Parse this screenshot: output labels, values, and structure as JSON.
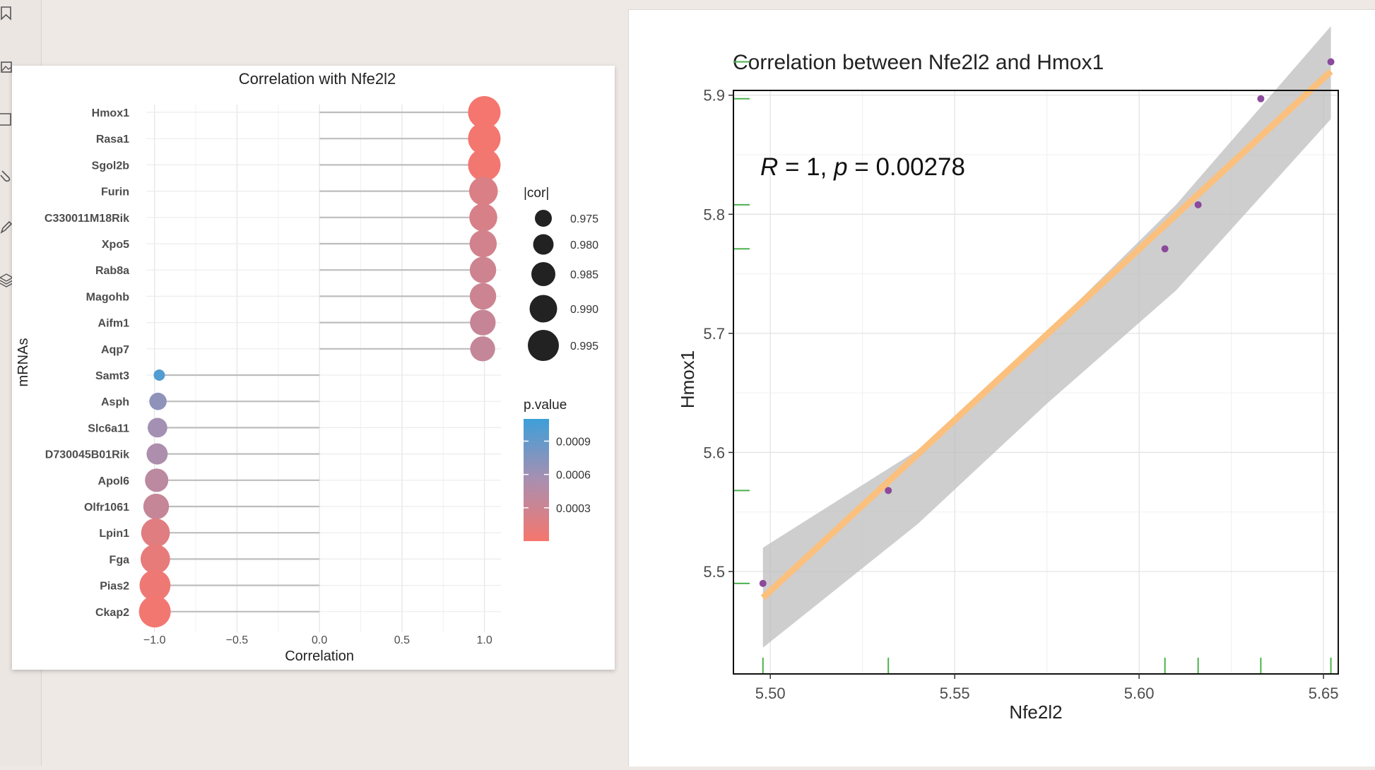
{
  "colors": {
    "p_high": "#3d9fd9",
    "p_mid": "#a98fb0",
    "p_low": "#f6766d",
    "lollipop_stem": "#bdbdbd",
    "smooth_line": "#fbc07d",
    "ci_band": "#bdbdbd",
    "point": "#8b4a9b",
    "rug": "#4bb14b"
  },
  "toolbar": {
    "icons": [
      "bookmark-icon",
      "image-icon",
      "page-icon",
      "paperclip-icon",
      "pen-icon",
      "layers-icon"
    ]
  },
  "chart_data": [
    {
      "type": "lollipop",
      "title": "Correlation with Nfe2l2",
      "xlabel": "Correlation",
      "ylabel": "mRNAs",
      "xlim": [
        -1.05,
        1.1
      ],
      "xticks": [
        -1.0,
        -0.5,
        0.0,
        0.5,
        1.0
      ],
      "xtick_labels": [
        "−1.0",
        "−0.5",
        "0.0",
        "0.5",
        "1.0"
      ],
      "grid": true,
      "legend_position": "right",
      "size_legend": {
        "title": "|cor|",
        "labels": [
          "0.975",
          "0.980",
          "0.985",
          "0.990",
          "0.995"
        ],
        "values": [
          0.975,
          0.98,
          0.985,
          0.99,
          0.995
        ]
      },
      "color_legend": {
        "title": "p.value",
        "labels": [
          "0.0009",
          "0.0006",
          "0.0003"
        ],
        "values": [
          0.0009,
          0.0006,
          0.0003
        ],
        "range": [
          0.0,
          0.0011
        ]
      },
      "categories": [
        "Hmox1",
        "Rasa1",
        "Sgol2b",
        "Furin",
        "C330011M18Rik",
        "Xpo5",
        "Rab8a",
        "Magohb",
        "Aifm1",
        "Aqp7",
        "Samt3",
        "Asph",
        "Slc6a11",
        "D730045B01Rik",
        "Apol6",
        "Olfr1061",
        "Lpin1",
        "Fga",
        "Pias2",
        "Ckap2"
      ],
      "cor": [
        0.999,
        0.999,
        0.999,
        0.994,
        0.993,
        0.992,
        0.991,
        0.991,
        0.99,
        0.989,
        -0.971,
        -0.979,
        -0.982,
        -0.984,
        -0.987,
        -0.99,
        -0.994,
        -0.995,
        -0.997,
        -0.998
      ],
      "abs_cor": [
        0.999,
        0.999,
        0.999,
        0.994,
        0.993,
        0.992,
        0.991,
        0.991,
        0.99,
        0.989,
        0.971,
        0.979,
        0.982,
        0.984,
        0.987,
        0.99,
        0.994,
        0.995,
        0.997,
        0.998
      ],
      "p_value": [
        1e-05,
        2e-05,
        3e-05,
        0.0002,
        0.00022,
        0.00026,
        0.00029,
        0.0003,
        0.00034,
        0.00036,
        0.00099,
        0.00068,
        0.00058,
        0.00052,
        0.00042,
        0.00035,
        0.00016,
        0.00011,
        6e-05,
        3e-05
      ]
    },
    {
      "type": "scatter",
      "title": "Correlation between Nfe2l2 and Hmox1",
      "annotation": {
        "r_label": "R",
        "r_value": " = 1, ",
        "p_label": "p",
        "p_value": " = 0.00278"
      },
      "xlabel": "Nfe2l2",
      "ylabel": "Hmox1",
      "xlim": [
        5.49,
        5.654
      ],
      "ylim": [
        5.414,
        5.904
      ],
      "xticks": [
        5.5,
        5.55,
        5.6,
        5.65
      ],
      "xtick_labels": [
        "5.50",
        "5.55",
        "5.60",
        "5.65"
      ],
      "yticks": [
        5.5,
        5.6,
        5.7,
        5.8,
        5.9
      ],
      "ytick_labels": [
        "5.5",
        "5.6",
        "5.7",
        "5.8",
        "5.9"
      ],
      "grid": true,
      "x": [
        5.498,
        5.532,
        5.607,
        5.616,
        5.633,
        5.652
      ],
      "y": [
        5.49,
        5.568,
        5.771,
        5.808,
        5.897,
        5.928
      ],
      "fit": {
        "x": [
          5.498,
          5.652
        ],
        "y": [
          5.478,
          5.92
        ]
      },
      "ci": {
        "x": [
          5.498,
          5.54,
          5.575,
          5.61,
          5.652
        ],
        "upper": [
          5.52,
          5.602,
          5.701,
          5.808,
          5.958
        ],
        "lower": [
          5.436,
          5.54,
          5.641,
          5.736,
          5.88
        ]
      }
    }
  ]
}
